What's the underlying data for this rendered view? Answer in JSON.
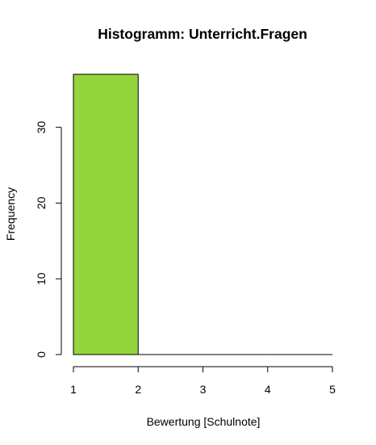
{
  "chart_data": {
    "type": "bar",
    "title": "Histogramm: Unterricht.Fragen",
    "xlabel": "Bewertung [Schulnote]",
    "ylabel": "Frequency",
    "bins": [
      [
        1,
        2
      ],
      [
        2,
        3
      ],
      [
        3,
        4
      ],
      [
        4,
        5
      ]
    ],
    "values": [
      37,
      0,
      0,
      0
    ],
    "xlim": [
      1,
      5
    ],
    "ylim": [
      0,
      37
    ],
    "x_ticks": [
      1,
      2,
      3,
      4,
      5
    ],
    "y_ticks": [
      0,
      10,
      20,
      30
    ],
    "bar_color": "#94d43c",
    "bar_outline": "#000000",
    "grid": false
  }
}
